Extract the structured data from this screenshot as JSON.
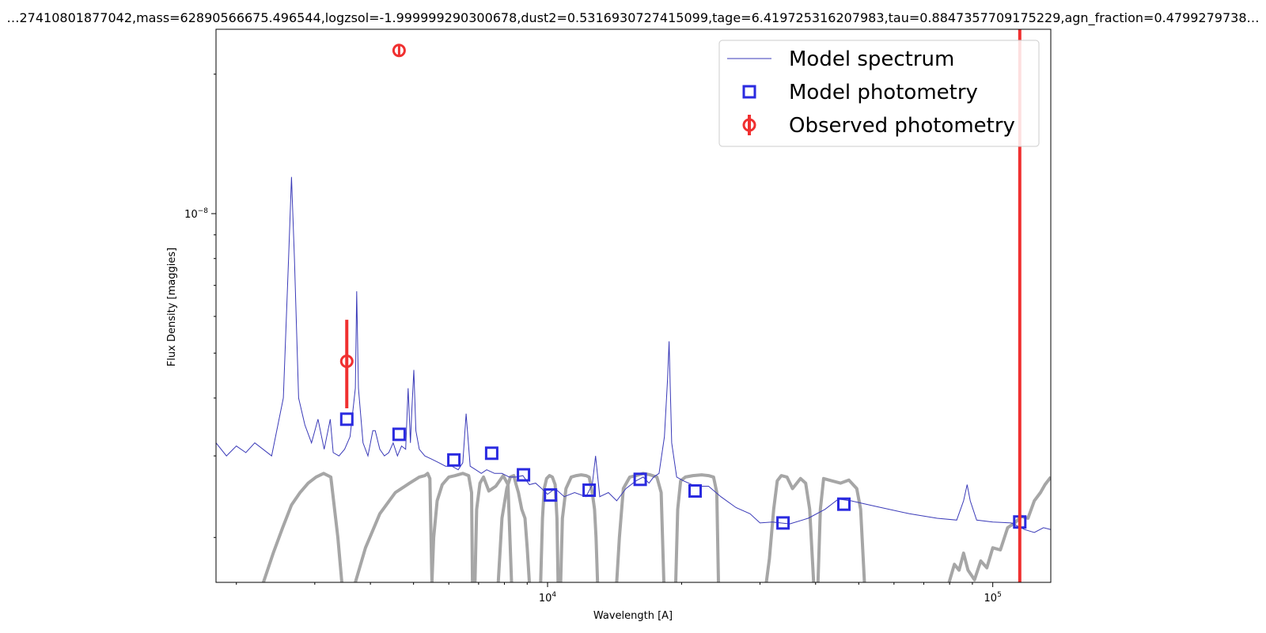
{
  "chart_data": {
    "type": "line",
    "title": "…27410801877042,mass=62890566675.496544,logzsol=-1.999999290300678,dust2=0.5316930727415099,tage=6.419725316207983,tau=0.8847357709175229,agn_fraction=0.4799279738…",
    "xlabel": "Wavelength [A]",
    "ylabel": "Flux Density [maggies]",
    "x_scale": "log",
    "y_scale": "log",
    "xlim": [
      1800,
      135000
    ],
    "ylim": [
      1.6e-09,
      2.5e-08
    ],
    "x_ticks": [
      {
        "value": 10000,
        "base": "10",
        "exp": "4"
      },
      {
        "value": 100000,
        "base": "10",
        "exp": "5"
      }
    ],
    "y_ticks": [
      {
        "value": 1e-08,
        "base": "10",
        "exp": "−8"
      }
    ],
    "grid": false,
    "legend_position": "top-right",
    "colors": {
      "spectrum": "#3a3ab8",
      "model_phot": "#2a2ae0",
      "observed": "#f03030",
      "filters": "#a6a6a6",
      "vline": "#f03030"
    },
    "series": [
      {
        "name": "Model spectrum",
        "style": "line",
        "x": [
          1800,
          1900,
          2000,
          2100,
          2200,
          2400,
          2550,
          2620,
          2660,
          2700,
          2760,
          2850,
          2950,
          3050,
          3150,
          3250,
          3300,
          3400,
          3500,
          3600,
          3700,
          3727,
          3760,
          3850,
          3950,
          4050,
          4100,
          4200,
          4300,
          4400,
          4500,
          4600,
          4700,
          4800,
          4861,
          4920,
          4959,
          5007,
          5060,
          5150,
          5300,
          5500,
          5700,
          5900,
          6100,
          6300,
          6450,
          6563,
          6700,
          6900,
          7100,
          7300,
          7600,
          7900,
          8200,
          8500,
          8800,
          9100,
          9400,
          9700,
          10000,
          10400,
          10900,
          11500,
          12200,
          12600,
          12818,
          13100,
          13700,
          14300,
          15000,
          15800,
          16400,
          16900,
          17300,
          17800,
          18300,
          18600,
          18751,
          19000,
          19500,
          20200,
          21500,
          23000,
          24500,
          26500,
          28500,
          30000,
          32000,
          35000,
          38500,
          42000,
          45000,
          48000,
          55000,
          65000,
          75000,
          83000,
          86000,
          87600,
          89000,
          92000,
          100000,
          110000,
          118000,
          124000,
          130000,
          135000
        ],
        "y": [
          3.2e-09,
          3e-09,
          3.15e-09,
          3.05e-09,
          3.2e-09,
          3e-09,
          4e-09,
          8e-09,
          1.2e-08,
          8e-09,
          4e-09,
          3.5e-09,
          3.2e-09,
          3.6e-09,
          3.1e-09,
          3.6e-09,
          3.05e-09,
          3e-09,
          3.1e-09,
          3.3e-09,
          4.2e-09,
          6.8e-09,
          4.2e-09,
          3.2e-09,
          3e-09,
          3.4e-09,
          3.4e-09,
          3.1e-09,
          3e-09,
          3.05e-09,
          3.2e-09,
          3e-09,
          3.15e-09,
          3.1e-09,
          4.2e-09,
          3.2e-09,
          3.8e-09,
          4.6e-09,
          3.4e-09,
          3.1e-09,
          3e-09,
          2.95e-09,
          2.9e-09,
          2.85e-09,
          2.85e-09,
          2.8e-09,
          2.9e-09,
          3.7e-09,
          2.85e-09,
          2.8e-09,
          2.75e-09,
          2.8e-09,
          2.75e-09,
          2.75e-09,
          2.7e-09,
          2.7e-09,
          2.72e-09,
          2.6e-09,
          2.62e-09,
          2.55e-09,
          2.48e-09,
          2.55e-09,
          2.45e-09,
          2.5e-09,
          2.45e-09,
          2.6e-09,
          3e-09,
          2.45e-09,
          2.5e-09,
          2.4e-09,
          2.55e-09,
          2.65e-09,
          2.7e-09,
          2.62e-09,
          2.7e-09,
          2.75e-09,
          3.3e-09,
          4.4e-09,
          5.3e-09,
          3.2e-09,
          2.7e-09,
          2.65e-09,
          2.58e-09,
          2.58e-09,
          2.45e-09,
          2.32e-09,
          2.25e-09,
          2.15e-09,
          2.16e-09,
          2.14e-09,
          2.2e-09,
          2.3e-09,
          2.42e-09,
          2.4e-09,
          2.33e-09,
          2.25e-09,
          2.2e-09,
          2.18e-09,
          2.4e-09,
          2.6e-09,
          2.4e-09,
          2.18e-09,
          2.16e-09,
          2.15e-09,
          2.08e-09,
          2.05e-09,
          2.1e-09,
          2.08e-09
        ]
      },
      {
        "name": "Model photometry",
        "style": "square-marker",
        "x": [
          3540,
          4640,
          6160,
          7490,
          8830,
          10150,
          12400,
          16150,
          21450,
          33800,
          46300,
          115000
        ],
        "y": [
          3.6e-09,
          3.34e-09,
          2.94e-09,
          3.04e-09,
          2.73e-09,
          2.47e-09,
          2.53e-09,
          2.67e-09,
          2.52e-09,
          2.15e-09,
          2.36e-09,
          2.16e-09
        ]
      },
      {
        "name": "Observed photometry",
        "style": "circle-errorbar",
        "x": [
          3540,
          4640
        ],
        "y": [
          4.8e-09,
          2.25e-08
        ],
        "yerr_low": [
          3.8e-09,
          2.25e-08
        ],
        "yerr_high": [
          5.9e-09,
          2.25e-08
        ]
      }
    ],
    "filter_curves": [
      {
        "name": "f1",
        "lam": [
          2300,
          2420,
          2540,
          2660,
          2780,
          2900,
          3020,
          3140,
          3260,
          3380,
          3450
        ],
        "y": [
          1.6e-09,
          1.85e-09,
          2.1e-09,
          2.35e-09,
          2.5e-09,
          2.62e-09,
          2.7e-09,
          2.75e-09,
          2.7e-09,
          2e-09,
          1.6e-09
        ]
      },
      {
        "name": "f2",
        "lam": [
          3700,
          3900,
          4200,
          4550,
          4900,
          5150,
          5300,
          5380,
          5440,
          5500
        ],
        "y": [
          1.6e-09,
          1.9e-09,
          2.25e-09,
          2.5e-09,
          2.62e-09,
          2.7e-09,
          2.72e-09,
          2.75e-09,
          2.68e-09,
          1.6e-09
        ]
      },
      {
        "name": "f3",
        "lam": [
          5500,
          5550,
          5650,
          5800,
          6000,
          6200,
          6450,
          6650,
          6750,
          6780
        ],
        "y": [
          1.6e-09,
          2e-09,
          2.4e-09,
          2.6e-09,
          2.7e-09,
          2.72e-09,
          2.75e-09,
          2.72e-09,
          2.5e-09,
          1.6e-09
        ]
      },
      {
        "name": "f4",
        "lam": [
          6870,
          6930,
          7050,
          7180,
          7380,
          7650,
          7950,
          8150,
          8300
        ],
        "y": [
          1.6e-09,
          2.3e-09,
          2.62e-09,
          2.7e-09,
          2.52e-09,
          2.58e-09,
          2.72e-09,
          2.6e-09,
          1.6e-09
        ]
      },
      {
        "name": "f5",
        "lam": [
          7750,
          7900,
          8100,
          8250,
          8400,
          8500,
          8600,
          8750,
          8900,
          9000,
          9100
        ],
        "y": [
          1.6e-09,
          2.2e-09,
          2.55e-09,
          2.7e-09,
          2.72e-09,
          2.6e-09,
          2.5e-09,
          2.3e-09,
          2.2e-09,
          1.9e-09,
          1.6e-09
        ]
      },
      {
        "name": "f6",
        "lam": [
          9650,
          9740,
          9830,
          9950,
          10100,
          10250,
          10400,
          10500,
          10560
        ],
        "y": [
          1.6e-09,
          2.2e-09,
          2.55e-09,
          2.68e-09,
          2.72e-09,
          2.7e-09,
          2.6e-09,
          2.2e-09,
          1.6e-09
        ]
      },
      {
        "name": "f7",
        "lam": [
          10700,
          10800,
          11000,
          11300,
          11600,
          11900,
          12200,
          12400,
          12600,
          12750,
          12850,
          12950
        ],
        "y": [
          1.6e-09,
          2.2e-09,
          2.55e-09,
          2.7e-09,
          2.72e-09,
          2.73e-09,
          2.72e-09,
          2.7e-09,
          2.5e-09,
          2.3e-09,
          2e-09,
          1.6e-09
        ]
      },
      {
        "name": "f8",
        "lam": [
          14300,
          14500,
          14800,
          15300,
          15800,
          16400,
          17000,
          17600,
          18000,
          18250
        ],
        "y": [
          1.6e-09,
          2e-09,
          2.55e-09,
          2.7e-09,
          2.72e-09,
          2.75e-09,
          2.73e-09,
          2.7e-09,
          2.5e-09,
          1.6e-09
        ]
      },
      {
        "name": "f9",
        "lam": [
          19400,
          19600,
          19900,
          20400,
          21200,
          22200,
          23000,
          23600,
          24000,
          24200
        ],
        "y": [
          1.6e-09,
          2.3e-09,
          2.65e-09,
          2.7e-09,
          2.72e-09,
          2.73e-09,
          2.72e-09,
          2.7e-09,
          2.5e-09,
          1.6e-09
        ]
      },
      {
        "name": "f10",
        "lam": [
          31000,
          31500,
          32200,
          32800,
          33500,
          34500,
          35500,
          37000,
          38000,
          38800,
          39600
        ],
        "y": [
          1.6e-09,
          1.8e-09,
          2.3e-09,
          2.65e-09,
          2.72e-09,
          2.7e-09,
          2.55e-09,
          2.68e-09,
          2.62e-09,
          2.3e-09,
          1.6e-09
        ]
      },
      {
        "name": "f11",
        "lam": [
          40500,
          41000,
          41700,
          43500,
          45500,
          47500,
          49500,
          50500,
          51500
        ],
        "y": [
          1.6e-09,
          2.3e-09,
          2.68e-09,
          2.65e-09,
          2.62e-09,
          2.66e-09,
          2.55e-09,
          2.3e-09,
          1.6e-09
        ]
      },
      {
        "name": "f12",
        "lam": [
          79000,
          82000,
          84000,
          86000,
          88000,
          91000,
          94000,
          97000,
          100000,
          104000,
          108000,
          112000,
          116000,
          120000,
          124000,
          128000,
          131000,
          135000
        ],
        "y": [
          1.55e-09,
          1.75e-09,
          1.7e-09,
          1.85e-09,
          1.7e-09,
          1.62e-09,
          1.78e-09,
          1.72e-09,
          1.9e-09,
          1.88e-09,
          2.1e-09,
          2.15e-09,
          2.22e-09,
          2.2e-09,
          2.4e-09,
          2.5e-09,
          2.6e-09,
          2.7e-09
        ]
      }
    ],
    "vertical_line": {
      "x": 115000
    }
  }
}
